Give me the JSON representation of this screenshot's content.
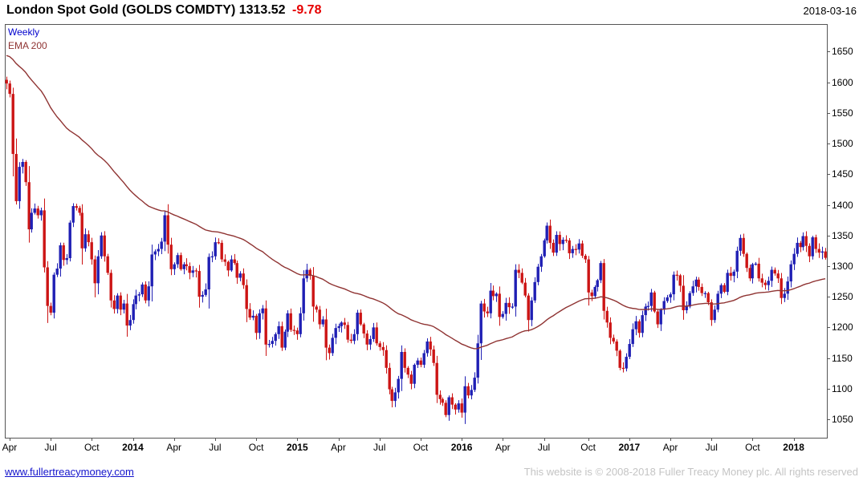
{
  "header": {
    "title": "London Spot Gold (GOLDS COMDTY) 1313.52",
    "change": "-9.78",
    "date": "2018-03-16"
  },
  "legend": {
    "timeframe": "Weekly",
    "ema_label": "EMA 200"
  },
  "footer": {
    "site_link": "www.fullertreacymoney.com",
    "copyright": "This website is © 2008-2018 Fuller Treacy Money plc. All rights reserved"
  },
  "chart_data": {
    "type": "candlestick",
    "instrument": "London Spot Gold (GOLDS COMDTY)",
    "timeframe": "Weekly",
    "overlay": "EMA 200",
    "last_price": 1313.52,
    "change": -9.78,
    "date": "2018-03-16",
    "ylim": [
      1020,
      1695
    ],
    "y_ticks": [
      1650,
      1600,
      1550,
      1500,
      1450,
      1400,
      1350,
      1300,
      1250,
      1200,
      1150,
      1100,
      1050
    ],
    "x_axis_labels": [
      {
        "label": "Apr",
        "week": 1,
        "bold": false
      },
      {
        "label": "Jul",
        "week": 14,
        "bold": false
      },
      {
        "label": "Oct",
        "week": 27,
        "bold": false
      },
      {
        "label": "2014",
        "week": 40,
        "bold": true
      },
      {
        "label": "Apr",
        "week": 53,
        "bold": false
      },
      {
        "label": "Jul",
        "week": 66,
        "bold": false
      },
      {
        "label": "Oct",
        "week": 79,
        "bold": false
      },
      {
        "label": "2015",
        "week": 92,
        "bold": true
      },
      {
        "label": "Apr",
        "week": 105,
        "bold": false
      },
      {
        "label": "Jul",
        "week": 118,
        "bold": false
      },
      {
        "label": "Oct",
        "week": 131,
        "bold": false
      },
      {
        "label": "2016",
        "week": 144,
        "bold": true
      },
      {
        "label": "Apr",
        "week": 157,
        "bold": false
      },
      {
        "label": "Jul",
        "week": 170,
        "bold": false
      },
      {
        "label": "Oct",
        "week": 184,
        "bold": false
      },
      {
        "label": "2017",
        "week": 197,
        "bold": true
      },
      {
        "label": "Apr",
        "week": 210,
        "bold": false
      },
      {
        "label": "Jul",
        "week": 223,
        "bold": false
      },
      {
        "label": "Oct",
        "week": 236,
        "bold": false
      },
      {
        "label": "2018",
        "week": 249,
        "bold": true
      }
    ],
    "weekly_closes": [
      1598,
      1581,
      1483,
      1406,
      1462,
      1470,
      1437,
      1360,
      1387,
      1394,
      1383,
      1391,
      1298,
      1235,
      1224,
      1286,
      1296,
      1334,
      1310,
      1313,
      1371,
      1398,
      1395,
      1387,
      1329,
      1352,
      1339,
      1311,
      1272,
      1316,
      1350,
      1316,
      1289,
      1244,
      1230,
      1252,
      1229,
      1239,
      1203,
      1212,
      1238,
      1252,
      1254,
      1270,
      1244,
      1267,
      1319,
      1324,
      1328,
      1340,
      1383,
      1335,
      1295,
      1303,
      1318,
      1295,
      1303,
      1300,
      1289,
      1293,
      1292,
      1250,
      1253,
      1262,
      1315,
      1316,
      1339,
      1338,
      1311,
      1307,
      1293,
      1311,
      1305,
      1281,
      1288,
      1269,
      1230,
      1216,
      1219,
      1191,
      1223,
      1231,
      1172,
      1173,
      1178,
      1189,
      1202,
      1167,
      1193,
      1223,
      1196,
      1195,
      1189,
      1223,
      1280,
      1294,
      1284,
      1234,
      1229,
      1205,
      1213,
      1167,
      1158,
      1183,
      1199,
      1202,
      1208,
      1204,
      1180,
      1178,
      1189,
      1224,
      1205,
      1190,
      1172,
      1181,
      1200,
      1174,
      1168,
      1163,
      1134,
      1099,
      1080,
      1094,
      1116,
      1160,
      1134,
      1123,
      1108,
      1139,
      1146,
      1139,
      1158,
      1177,
      1164,
      1142,
      1090,
      1083,
      1077,
      1057,
      1086,
      1074,
      1066,
      1076,
      1061,
      1104,
      1089,
      1098,
      1118,
      1174,
      1239,
      1226,
      1223,
      1260,
      1251,
      1255,
      1217,
      1222,
      1240,
      1233,
      1234,
      1294,
      1289,
      1273,
      1252,
      1212,
      1244,
      1274,
      1299,
      1316,
      1342,
      1366,
      1338,
      1322,
      1351,
      1336,
      1343,
      1342,
      1321,
      1328,
      1327,
      1337,
      1317,
      1311,
      1257,
      1251,
      1266,
      1277,
      1305,
      1227,
      1208,
      1183,
      1177,
      1162,
      1134,
      1133,
      1152,
      1173,
      1197,
      1210,
      1191,
      1220,
      1234,
      1235,
      1257,
      1226,
      1205,
      1229,
      1243,
      1249,
      1254,
      1286,
      1285,
      1268,
      1228,
      1234,
      1256,
      1267,
      1278,
      1266,
      1256,
      1256,
      1241,
      1212,
      1229,
      1255,
      1269,
      1258,
      1289,
      1284,
      1291,
      1325,
      1346,
      1320,
      1297,
      1280,
      1303,
      1304,
      1280,
      1273,
      1269,
      1276,
      1294,
      1288,
      1280,
      1248,
      1255,
      1275,
      1303,
      1320,
      1338,
      1331,
      1349,
      1333,
      1316,
      1347,
      1328,
      1322,
      1324,
      1313.52
    ],
    "ema": {
      "label": "EMA 200",
      "seed": 1645,
      "alpha": 0.028
    },
    "colors": {
      "up": "#1f1fb4",
      "down": "#cc1414",
      "ema": "#8f3332",
      "frame": "#555555",
      "axis_text": "#000000",
      "weekly_label": "#0000cd",
      "change_negative": "#e60000",
      "link": "#1414cc",
      "copyright": "#c4c4c4",
      "background": "#ffffff"
    }
  }
}
